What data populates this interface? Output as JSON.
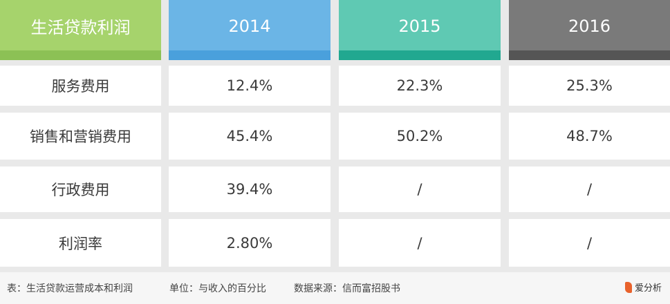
{
  "chart_data": {
    "type": "table",
    "header_label": "生活贷款利润",
    "columns": [
      "2014",
      "2015",
      "2016"
    ],
    "rows": [
      {
        "label": "服务费用",
        "values": [
          "12.4%",
          "22.3%",
          "25.3%"
        ]
      },
      {
        "label": "销售和营销费用",
        "values": [
          "45.4%",
          "50.2%",
          "48.7%"
        ]
      },
      {
        "label": "行政费用",
        "values": [
          "39.4%",
          "/",
          "/"
        ]
      },
      {
        "label": "利润率",
        "values": [
          "2.80%",
          "/",
          "/"
        ]
      }
    ],
    "header_colors": {
      "label": {
        "top": "#a6d36c",
        "band": "#8cc155"
      },
      "2014": {
        "top": "#6bb5e6",
        "band": "#4aa0dc"
      },
      "2015": {
        "top": "#5fc9b3",
        "band": "#21a890"
      },
      "2016": {
        "top": "#7a7a7a",
        "band": "#555555"
      }
    }
  },
  "footer": {
    "caption": "表：生活贷款运营成本和利润",
    "unit": "单位：与收入的百分比",
    "source": "数据来源：信而富招股书"
  },
  "logo": {
    "text": "爱分析",
    "icon": "brand-mark-icon"
  }
}
